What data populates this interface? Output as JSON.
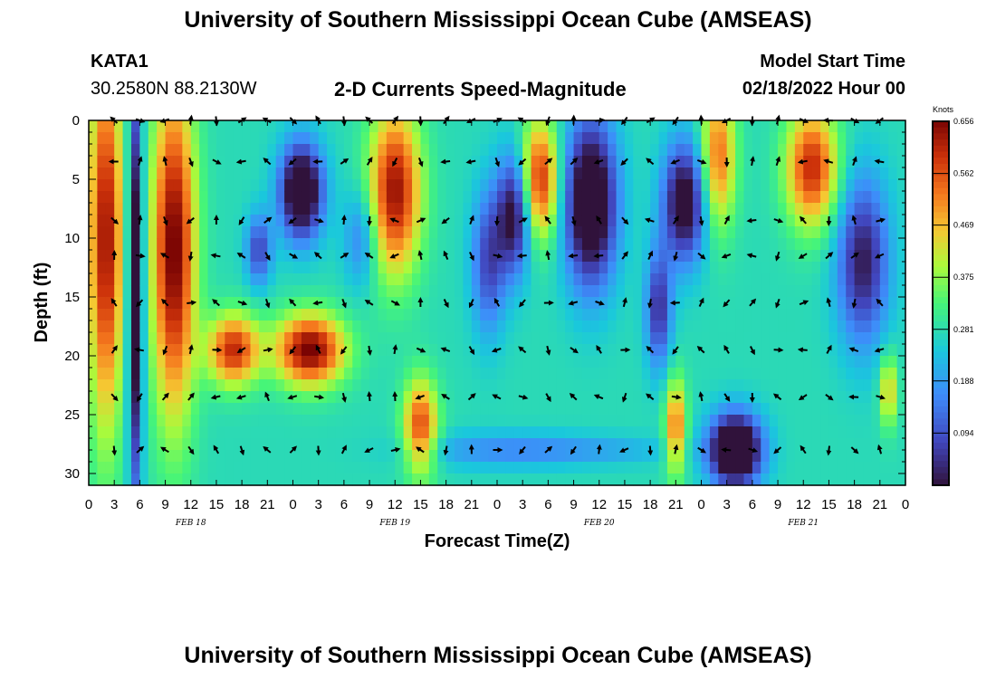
{
  "header": {
    "title": "University of Southern Mississippi Ocean Cube (AMSEAS)",
    "station": "KATA1",
    "coords": "30.2580N  88.2130W",
    "subtitle": "2-D Currents Speed-Magnitude",
    "model_start_label": "Model Start Time",
    "model_start_value": "02/18/2022 Hour 00"
  },
  "footer": {
    "title": "University of Southern Mississippi Ocean Cube (AMSEAS)"
  },
  "chart_data": {
    "type": "heatmap",
    "title": "2-D Currents Speed-Magnitude",
    "xlabel": "Forecast Time(Z)",
    "ylabel": "Depth (ft)",
    "x_ticks": [
      "0",
      "3",
      "6",
      "9",
      "12",
      "15",
      "18",
      "21",
      "0",
      "3",
      "6",
      "9",
      "12",
      "15",
      "18",
      "21",
      "0",
      "3",
      "6",
      "9",
      "12",
      "15",
      "18",
      "21",
      "0",
      "3",
      "6",
      "9",
      "12",
      "15",
      "18",
      "21",
      "0"
    ],
    "x_range_hours": [
      0,
      96
    ],
    "day_labels": [
      {
        "label": "FEB 18",
        "hour": 12
      },
      {
        "label": "FEB 19",
        "hour": 36
      },
      {
        "label": "FEB 20",
        "hour": 60
      },
      {
        "label": "FEB 21",
        "hour": 84
      }
    ],
    "y_ticks": [
      "0",
      "5",
      "10",
      "15",
      "20",
      "25",
      "30"
    ],
    "y_range_ft": [
      0,
      31
    ],
    "colorbar": {
      "unit": "Knots",
      "ticks": [
        "0.656",
        "0.562",
        "0.469",
        "0.375",
        "0.281",
        "0.188",
        "0.094"
      ],
      "range": [
        0,
        0.656
      ]
    },
    "arrow_depths_ft": [
      0,
      3.5,
      8.5,
      11.5,
      15.5,
      19.5,
      23.5,
      28
    ]
  }
}
